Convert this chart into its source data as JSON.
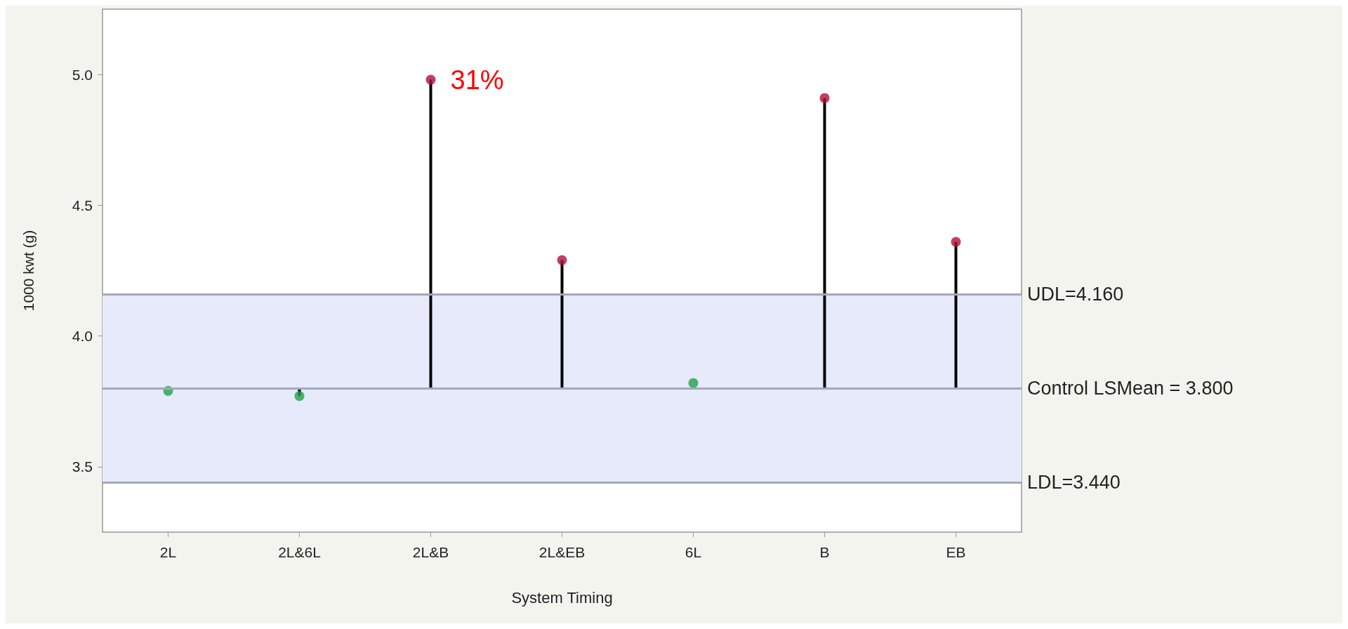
{
  "chart_data": {
    "type": "lollipop",
    "xlabel": "System Timing",
    "ylabel": "1000 kwt (g)",
    "categories": [
      "2L",
      "2L&6L",
      "2L&B",
      "2L&EB",
      "6L",
      "B",
      "EB"
    ],
    "values": [
      3.79,
      3.77,
      4.98,
      4.29,
      3.82,
      4.91,
      4.36
    ],
    "errors": [
      null,
      [
        3.77,
        3.8
      ],
      [
        3.8,
        4.98
      ],
      [
        3.8,
        4.29
      ],
      null,
      [
        3.8,
        4.91
      ],
      [
        3.8,
        4.36
      ]
    ],
    "colors": [
      "#1fa34a",
      "#1fa34a",
      "#b0103a",
      "#b0103a",
      "#1fa34a",
      "#b0103a",
      "#b0103a"
    ],
    "ylim": [
      3.25,
      5.25
    ],
    "yticks": [
      3.5,
      {
        "value": 4,
        "label": "4.0"
      },
      4.5,
      {
        "value": 5,
        "label": "5.0"
      }
    ],
    "ref_lines": [
      {
        "axis": "y",
        "value": 3.8,
        "label": "Control LSMean = 3.800",
        "color": "#a3a9bb"
      },
      {
        "axis": "y",
        "value": 4.16,
        "label": "UDL=4.160",
        "color": "#a3a9bb"
      },
      {
        "axis": "y",
        "value": 3.44,
        "label": "LDL=3.440",
        "color": "#a3a9bb"
      }
    ],
    "bands": [
      {
        "axis": "y",
        "from": 3.44,
        "to": 4.16,
        "color": "#e6eafa"
      }
    ],
    "annotations": [
      "31%"
    ],
    "marker": "circle",
    "grid": false,
    "legend": false
  }
}
